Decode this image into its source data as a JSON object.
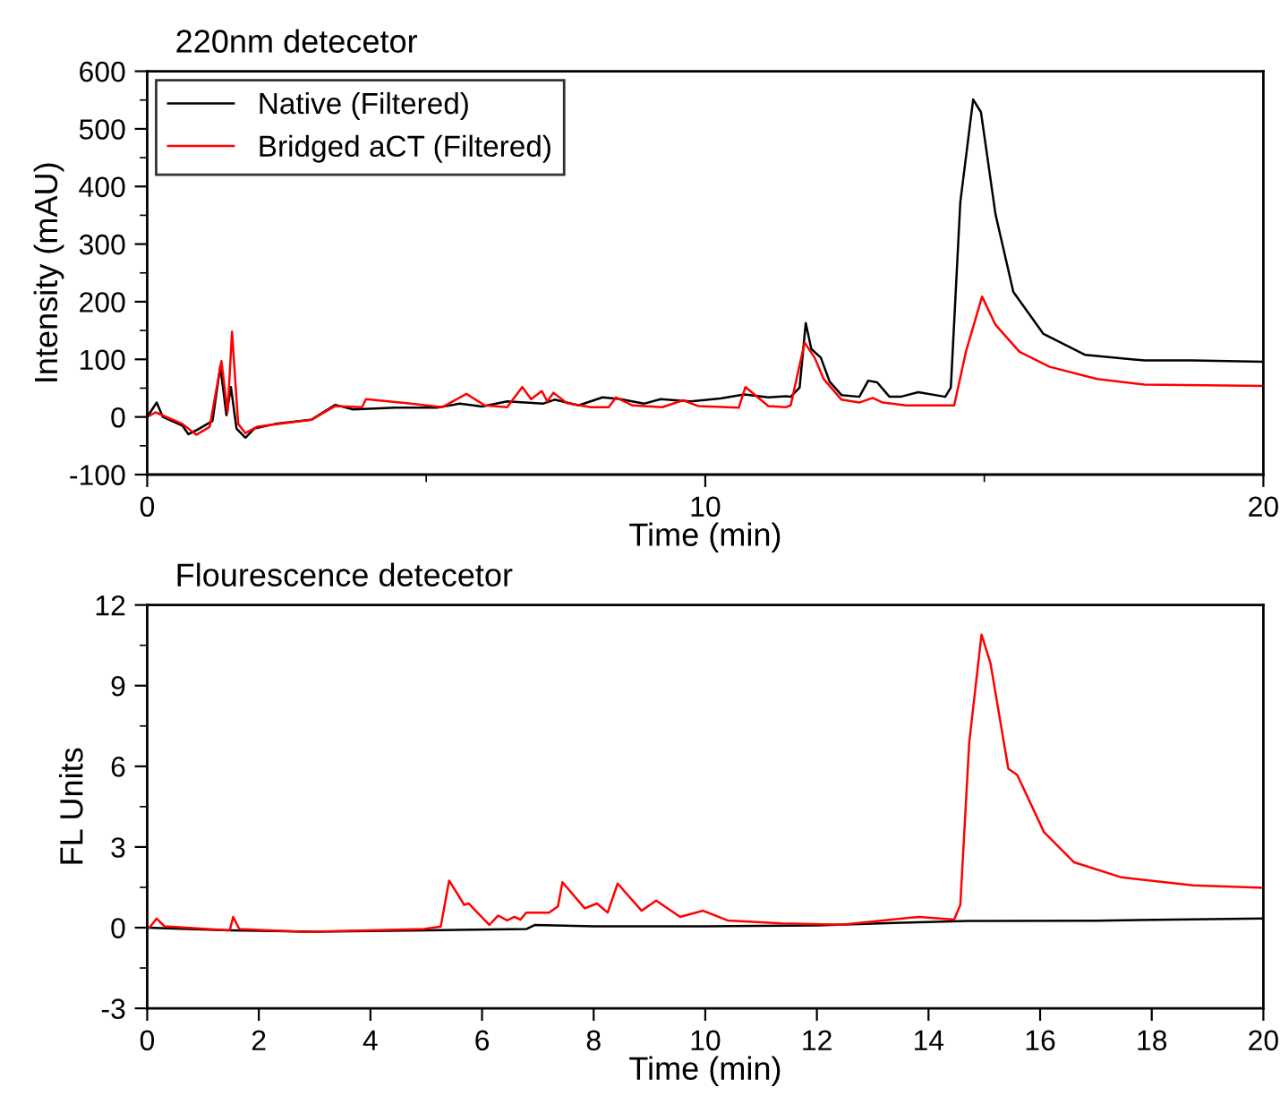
{
  "chart_data": [
    {
      "type": "line",
      "title": "220nm detecetor",
      "xlabel": "Time (min)",
      "ylabel": "Intensity (mAU)",
      "xlim": [
        0,
        20
      ],
      "xticks": [
        0,
        {
          "value": 5,
          "label": null
        },
        10,
        {
          "value": 15,
          "label": null
        },
        20
      ],
      "ylim": [
        -100,
        600
      ],
      "yticks": [
        -100,
        {
          "value": -50,
          "label": null
        },
        0,
        {
          "value": 50,
          "label": null
        },
        100,
        {
          "value": 150,
          "label": null
        },
        200,
        {
          "value": 250,
          "label": null
        },
        300,
        {
          "value": 350,
          "label": null
        },
        400,
        {
          "value": 450,
          "label": null
        },
        500,
        {
          "value": 550,
          "label": null
        },
        600
      ],
      "legend": "top left",
      "grid": false,
      "series": [
        {
          "name": "Native (Filtered)",
          "color": "#000000",
          "x": [
            0,
            0.17,
            0.28,
            0.63,
            0.74,
            0.9,
            1.17,
            1.31,
            1.42,
            1.5,
            1.6,
            1.76,
            1.92,
            2.3,
            2.94,
            3.37,
            3.69,
            4.44,
            5.19,
            5.6,
            6.0,
            6.45,
            7.09,
            7.3,
            7.73,
            8.16,
            8.48,
            8.9,
            9.2,
            9.74,
            10.27,
            10.7,
            11.13,
            11.45,
            11.53,
            11.69,
            11.8,
            11.9,
            12.07,
            12.23,
            12.44,
            12.76,
            12.92,
            13.08,
            13.3,
            13.5,
            13.82,
            14.3,
            14.4,
            14.57,
            14.8,
            14.94,
            15.2,
            15.52,
            16.06,
            16.8,
            17.87,
            18.72,
            20
          ],
          "values": [
            0,
            25,
            0,
            -15,
            -30,
            -22,
            -7,
            88,
            3,
            52,
            -20,
            -36,
            -20,
            -12,
            -5,
            21,
            13,
            16,
            16,
            23,
            18,
            27,
            23,
            30,
            20,
            34,
            31,
            23,
            31,
            27,
            32,
            39,
            34,
            36,
            35,
            51,
            163,
            118,
            103,
            61,
            38,
            35,
            63,
            60,
            35,
            35,
            43,
            35,
            51,
            373,
            551,
            529,
            352,
            217,
            144,
            108,
            98,
            98,
            96
          ]
        },
        {
          "name": "Bridged aCT (Filtered)",
          "color": "#ff0000",
          "x": [
            0,
            0.15,
            0.63,
            0.88,
            1.12,
            1.33,
            1.44,
            1.52,
            1.63,
            1.76,
            1.97,
            2.94,
            3.37,
            3.85,
            3.92,
            4.65,
            5.29,
            5.72,
            6.05,
            6.45,
            6.72,
            6.88,
            7.07,
            7.17,
            7.28,
            7.52,
            7.95,
            8.27,
            8.4,
            8.7,
            9.23,
            9.6,
            9.87,
            10.6,
            10.72,
            11.13,
            11.45,
            11.53,
            11.78,
            11.96,
            12.12,
            12.44,
            12.76,
            13.0,
            13.18,
            13.6,
            14.46,
            14.67,
            14.96,
            15.2,
            15.63,
            16.17,
            17.02,
            17.87,
            20
          ],
          "values": [
            0,
            8,
            -12,
            -31,
            -17,
            97,
            8,
            148,
            -12,
            -28,
            -17,
            -5,
            19,
            17,
            31,
            24,
            17,
            40,
            20,
            17,
            52,
            31,
            45,
            27,
            42,
            24,
            17,
            17,
            34,
            20,
            17,
            29,
            19,
            16,
            52,
            19,
            17,
            20,
            129,
            103,
            66,
            30,
            25,
            33,
            25,
            20,
            20,
            113,
            209,
            160,
            113,
            87,
            66,
            56,
            54
          ]
        }
      ]
    },
    {
      "type": "line",
      "title": "Flourescence detecetor",
      "xlabel": "Time (min)",
      "ylabel": "FL Units",
      "xlim": [
        0,
        20
      ],
      "xticks": [
        0,
        2,
        4,
        6,
        8,
        10,
        12,
        14,
        16,
        18,
        20
      ],
      "ylim": [
        -3,
        12
      ],
      "yticks": [
        -3,
        {
          "value": -1.5,
          "label": null
        },
        0,
        {
          "value": 1.5,
          "label": null
        },
        3,
        {
          "value": 4.5,
          "label": null
        },
        6,
        {
          "value": 7.5,
          "label": null
        },
        9,
        {
          "value": 10.5,
          "label": null
        },
        12
      ],
      "legend": false,
      "grid": false,
      "series": [
        {
          "color": "#000000",
          "x": [
            0,
            1.5,
            3,
            5,
            6.8,
            6.95,
            8,
            10,
            12,
            13.5,
            14.7,
            15,
            17,
            20
          ],
          "values": [
            0,
            -0.1,
            -0.15,
            -0.1,
            -0.05,
            0.1,
            0.05,
            0.05,
            0.08,
            0.18,
            0.25,
            0.25,
            0.26,
            0.34
          ]
        },
        {
          "color": "#ff0000",
          "x": [
            0.01,
            0.04,
            0.17,
            0.31,
            1.48,
            1.54,
            1.65,
            2.82,
            4.96,
            5.26,
            5.41,
            5.68,
            5.76,
            6.13,
            6.29,
            6.45,
            6.58,
            6.69,
            6.79,
            7.2,
            7.36,
            7.44,
            7.84,
            8.06,
            8.25,
            8.43,
            8.86,
            9.12,
            9.55,
            9.96,
            10.4,
            11.37,
            12.44,
            13.83,
            14.46,
            14.57,
            14.73,
            14.95,
            15.11,
            15.43,
            15.59,
            16.07,
            16.61,
            17.46,
            18.74,
            20
          ],
          "values": [
            0,
            0,
            0.34,
            0.05,
            -0.1,
            0.4,
            -0.05,
            -0.16,
            -0.05,
            0.04,
            1.75,
            0.85,
            0.9,
            0.1,
            0.45,
            0.27,
            0.4,
            0.3,
            0.56,
            0.56,
            0.79,
            1.69,
            0.72,
            0.9,
            0.56,
            1.64,
            0.63,
            1.01,
            0.4,
            0.63,
            0.27,
            0.16,
            0.11,
            0.4,
            0.3,
            0.85,
            6.9,
            10.9,
            9.84,
            5.91,
            5.68,
            3.55,
            2.43,
            1.87,
            1.57,
            1.48
          ]
        }
      ]
    }
  ]
}
